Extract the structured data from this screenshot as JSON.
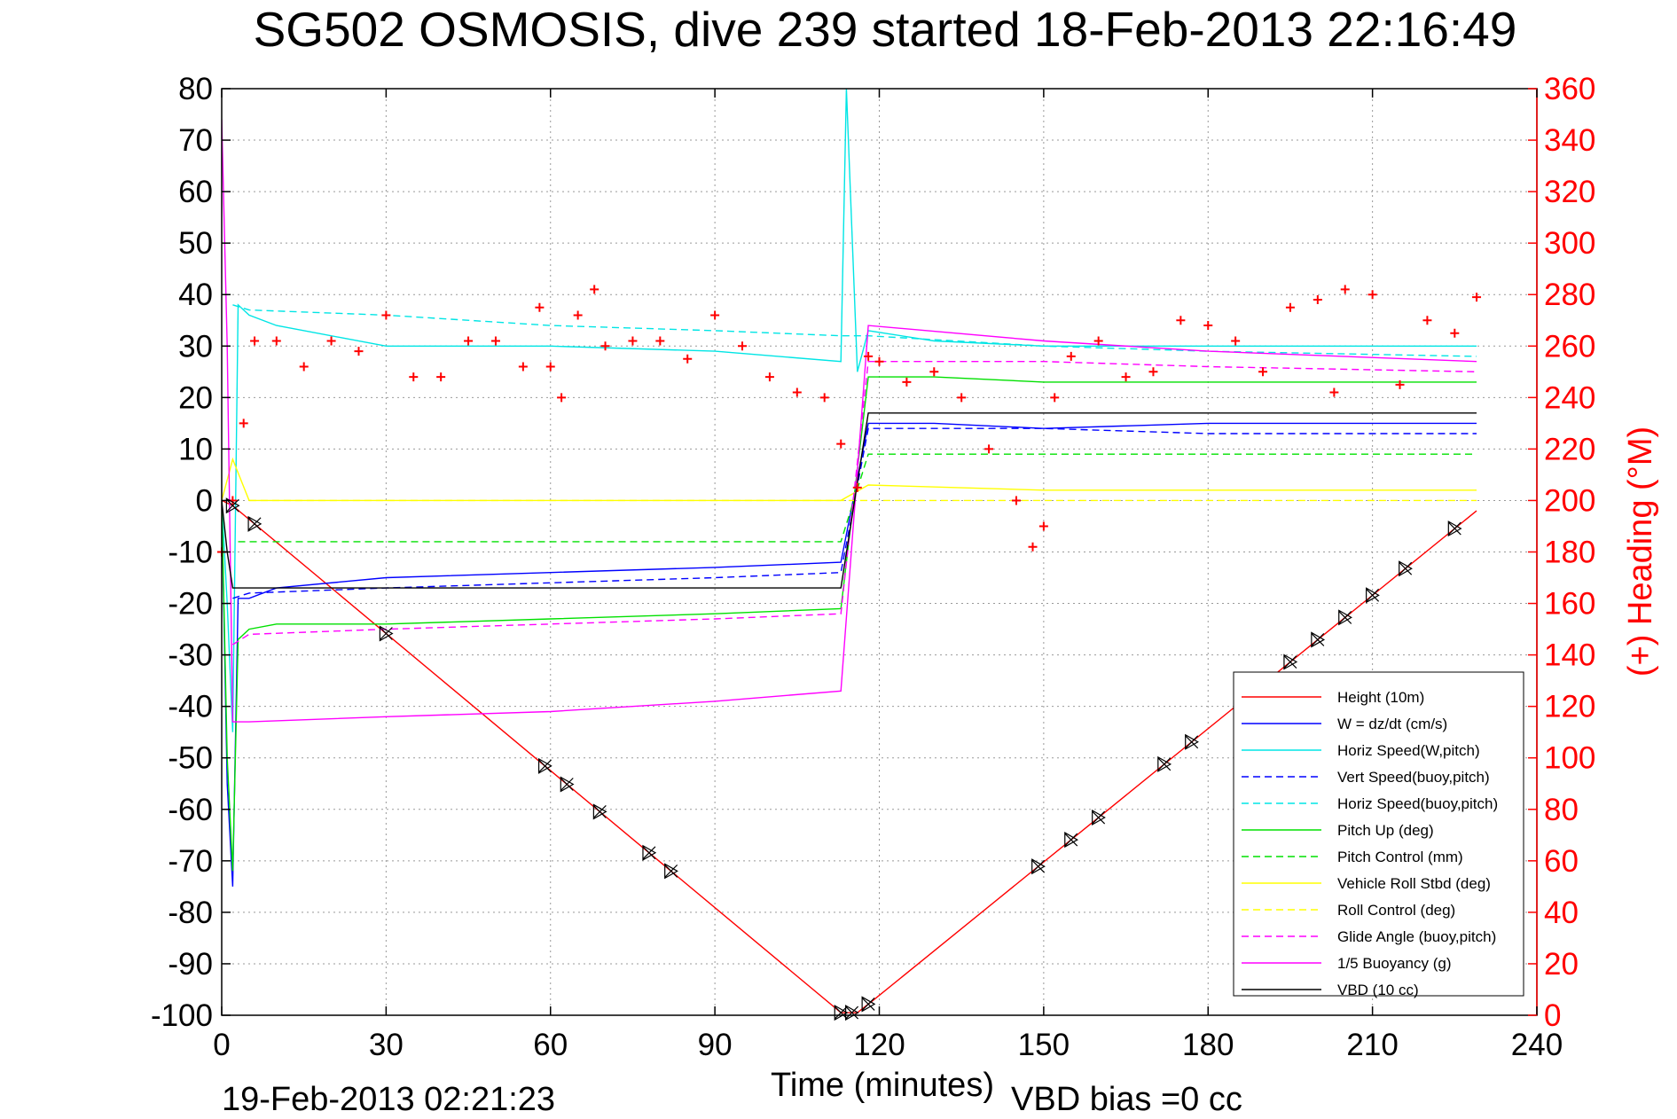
{
  "chart_data": {
    "type": "line",
    "title": "SG502 OSMOSIS, dive 239 started 18-Feb-2013 22:16:49",
    "xlabel": "Time (minutes)",
    "ylabel": "",
    "y2label": "(+) Heading (°M)",
    "xlim": [
      0,
      240
    ],
    "ylim": [
      -100,
      80
    ],
    "y2lim": [
      0,
      360
    ],
    "x_ticks": [
      "0",
      "30",
      "60",
      "90",
      "120",
      "150",
      "180",
      "210",
      "240"
    ],
    "y_ticks": [
      "80",
      "70",
      "60",
      "50",
      "40",
      "30",
      "20",
      "10",
      "0",
      "-10",
      "-20",
      "-30",
      "-40",
      "-50",
      "-60",
      "-70",
      "-80",
      "-90",
      "-100"
    ],
    "y2_ticks": [
      "360",
      "340",
      "320",
      "300",
      "280",
      "260",
      "240",
      "220",
      "200",
      "180",
      "160",
      "140",
      "120",
      "100",
      "80",
      "60",
      "40",
      "20",
      "0"
    ],
    "grid": true,
    "legend_position": "bottom-right",
    "series": [
      {
        "name": "Height (10m)",
        "color": "#ff0000",
        "style": "solid",
        "x": [
          0,
          2,
          113,
          116,
          119,
          229
        ],
        "y": [
          0,
          -1,
          -99.5,
          -99.5,
          -97,
          -2
        ]
      },
      {
        "name": "W = dz/dt (cm/s)",
        "color": "#0000ff",
        "style": "solid",
        "x": [
          0,
          1,
          2,
          3,
          5,
          10,
          30,
          60,
          90,
          113,
          118,
          130,
          150,
          180,
          210,
          229
        ],
        "y": [
          0,
          -55,
          -75,
          -19,
          -19,
          -17,
          -15,
          -14,
          -13,
          -12,
          15,
          15,
          14,
          15,
          15,
          15
        ]
      },
      {
        "name": "Horiz Speed(W,pitch)",
        "color": "#00e5e5",
        "style": "solid",
        "x": [
          0,
          1,
          2,
          3,
          5,
          10,
          30,
          60,
          90,
          113,
          114,
          116,
          118,
          130,
          150,
          180,
          210,
          229
        ],
        "y": [
          0,
          -20,
          -45,
          38,
          36,
          34,
          30,
          30,
          29,
          27,
          80,
          25,
          33,
          31,
          30,
          30,
          30,
          30
        ]
      },
      {
        "name": "Vert Speed(buoy,pitch)",
        "color": "#0000ff",
        "style": "dashed",
        "x": [
          2,
          5,
          30,
          60,
          90,
          113,
          118,
          150,
          180,
          229
        ],
        "y": [
          -19,
          -18,
          -17,
          -16,
          -15,
          -14,
          14,
          14,
          13,
          13
        ]
      },
      {
        "name": "Horiz Speed(buoy,pitch)",
        "color": "#00e5e5",
        "style": "dashed",
        "x": [
          2,
          5,
          30,
          60,
          90,
          113,
          118,
          150,
          180,
          229
        ],
        "y": [
          38,
          37,
          36,
          34,
          33,
          32,
          32,
          30,
          29,
          28
        ]
      },
      {
        "name": "Pitch Up (deg)",
        "color": "#00e000",
        "style": "solid",
        "x": [
          0,
          1,
          2,
          3,
          5,
          10,
          30,
          60,
          90,
          113,
          118,
          130,
          150,
          180,
          210,
          229
        ],
        "y": [
          0,
          -50,
          -72,
          -27,
          -25,
          -24,
          -24,
          -23,
          -22,
          -21,
          24,
          24,
          23,
          23,
          23,
          23
        ]
      },
      {
        "name": "Pitch Control (mm)",
        "color": "#00e000",
        "style": "dashed",
        "x": [
          3,
          113,
          118,
          229
        ],
        "y": [
          -8,
          -8,
          9,
          9
        ]
      },
      {
        "name": "Vehicle Roll Stbd (deg)",
        "color": "#ffff00",
        "style": "solid",
        "x": [
          0,
          2,
          5,
          30,
          60,
          90,
          113,
          118,
          150,
          180,
          210,
          229
        ],
        "y": [
          0,
          8,
          0,
          0,
          0,
          0,
          0,
          3,
          2,
          2,
          2,
          2
        ]
      },
      {
        "name": "Roll Control (deg)",
        "color": "#ffff00",
        "style": "dashed",
        "x": [
          5,
          113,
          118,
          229
        ],
        "y": [
          0,
          0,
          0,
          0
        ]
      },
      {
        "name": "Glide Angle (buoy,pitch)",
        "color": "#ff00ff",
        "style": "dashed",
        "x": [
          2,
          5,
          30,
          60,
          90,
          113,
          118,
          150,
          180,
          229
        ],
        "y": [
          -28,
          -26,
          -25,
          -24,
          -23,
          -22,
          27,
          27,
          26,
          25
        ]
      },
      {
        "name": "1/5 Buoyancy (g)",
        "color": "#ff00ff",
        "style": "solid",
        "x": [
          0,
          1,
          2,
          5,
          30,
          60,
          90,
          113,
          118,
          150,
          180,
          229
        ],
        "y": [
          74,
          30,
          -43,
          -43,
          -42,
          -41,
          -39,
          -37,
          34,
          31,
          29,
          27
        ]
      },
      {
        "name": "VBD (10 cc)",
        "color": "#000000",
        "style": "solid",
        "x": [
          0,
          1,
          2,
          113,
          118,
          229
        ],
        "y": [
          0,
          -10,
          -17,
          -17,
          17,
          17
        ]
      }
    ],
    "heading_series": {
      "name": "(+) Heading (°M)",
      "color": "#ff0000",
      "marker": "+",
      "x": [
        0,
        2,
        4,
        6,
        10,
        15,
        20,
        25,
        30,
        35,
        40,
        45,
        50,
        55,
        58,
        60,
        62,
        65,
        68,
        70,
        75,
        80,
        85,
        90,
        95,
        100,
        105,
        110,
        113,
        116,
        118,
        120,
        125,
        130,
        135,
        140,
        145,
        148,
        150,
        152,
        155,
        160,
        165,
        170,
        175,
        180,
        185,
        190,
        195,
        200,
        203,
        205,
        210,
        215,
        220,
        225,
        229
      ],
      "y": [
        180,
        200,
        230,
        262,
        262,
        252,
        262,
        258,
        272,
        248,
        248,
        262,
        262,
        252,
        275,
        252,
        240,
        272,
        282,
        260,
        262,
        262,
        255,
        272,
        260,
        248,
        242,
        240,
        222,
        205,
        256,
        254,
        246,
        250,
        240,
        220,
        200,
        182,
        190,
        240,
        256,
        262,
        248,
        250,
        270,
        268,
        262,
        250,
        275,
        278,
        242,
        282,
        280,
        245,
        270,
        265,
        279
      ]
    },
    "height_markers_x": [
      2,
      6,
      30,
      59,
      63,
      69,
      78,
      82,
      113,
      115,
      118,
      149,
      155,
      160,
      172,
      177,
      195,
      200,
      205,
      210,
      216,
      225
    ]
  },
  "footer": {
    "timestamp": "19-Feb-2013 02:21:23",
    "vbd_bias": "VBD bias =0 cc"
  }
}
